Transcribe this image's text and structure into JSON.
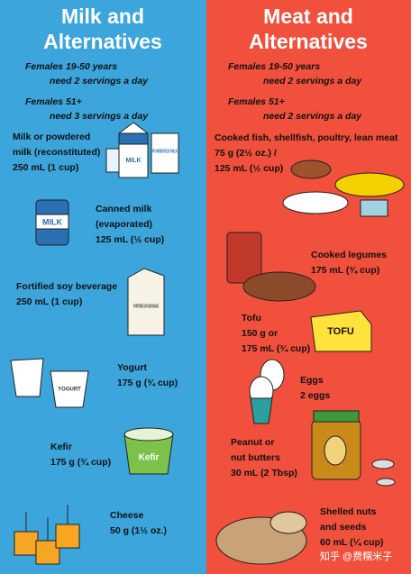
{
  "left": {
    "title": [
      "Milk and",
      "Alternatives"
    ],
    "requirements": [
      {
        "group": "Females 19-50 years",
        "need": "need 2 servings a day"
      },
      {
        "group": "Females 51+",
        "need": "need 3 servings a day"
      }
    ],
    "items": [
      {
        "lines": [
          "Milk or powdered",
          "milk (reconstituted)",
          "250 mL (1 cup)"
        ]
      },
      {
        "lines": [
          "Canned milk",
          "(evaporated)",
          "125 mL (½ cup)"
        ]
      },
      {
        "lines": [
          "Fortified soy beverage",
          "250 mL (1 cup)"
        ]
      },
      {
        "lines": [
          "Yogurt",
          "175 g (¾ cup)"
        ]
      },
      {
        "lines": [
          "Kefir",
          "175 g (¾ cup)"
        ]
      },
      {
        "lines": [
          "Cheese",
          "50 g (1½ oz.)"
        ]
      }
    ]
  },
  "right": {
    "title": [
      "Meat and",
      "Alternatives"
    ],
    "requirements": [
      {
        "group": "Females 19-50 years",
        "need": "need 2 servings a day"
      },
      {
        "group": "Females 51+",
        "need": "need 2 servings a day"
      }
    ],
    "items": [
      {
        "lines": [
          "Cooked fish, shellfish, poultry, lean meat",
          "75 g (2½ oz.) /",
          "125 mL (½ cup)"
        ]
      },
      {
        "lines": [
          "Cooked legumes",
          "175 mL (¾ cup)"
        ]
      },
      {
        "lines": [
          "Tofu",
          "150 g  or",
          "175 mL (¾ cup)"
        ]
      },
      {
        "lines": [
          "Eggs",
          "2 eggs"
        ]
      },
      {
        "lines": [
          "Peanut or",
          "nut butters",
          "30 mL (2 Tbsp)"
        ]
      },
      {
        "lines": [
          "Shelled nuts",
          "and seeds",
          "60 mL (¼ cup)"
        ]
      }
    ]
  },
  "labels": {
    "carton": "MILK",
    "powder": "POWDERED MILK",
    "can": "MILK",
    "soy": "FORTIFIED SOY BEVERAGE",
    "yogurt": "YOGURT",
    "kefir": "Kefir",
    "tofu": "TOFU"
  },
  "watermark": "知乎 @费糯米子"
}
